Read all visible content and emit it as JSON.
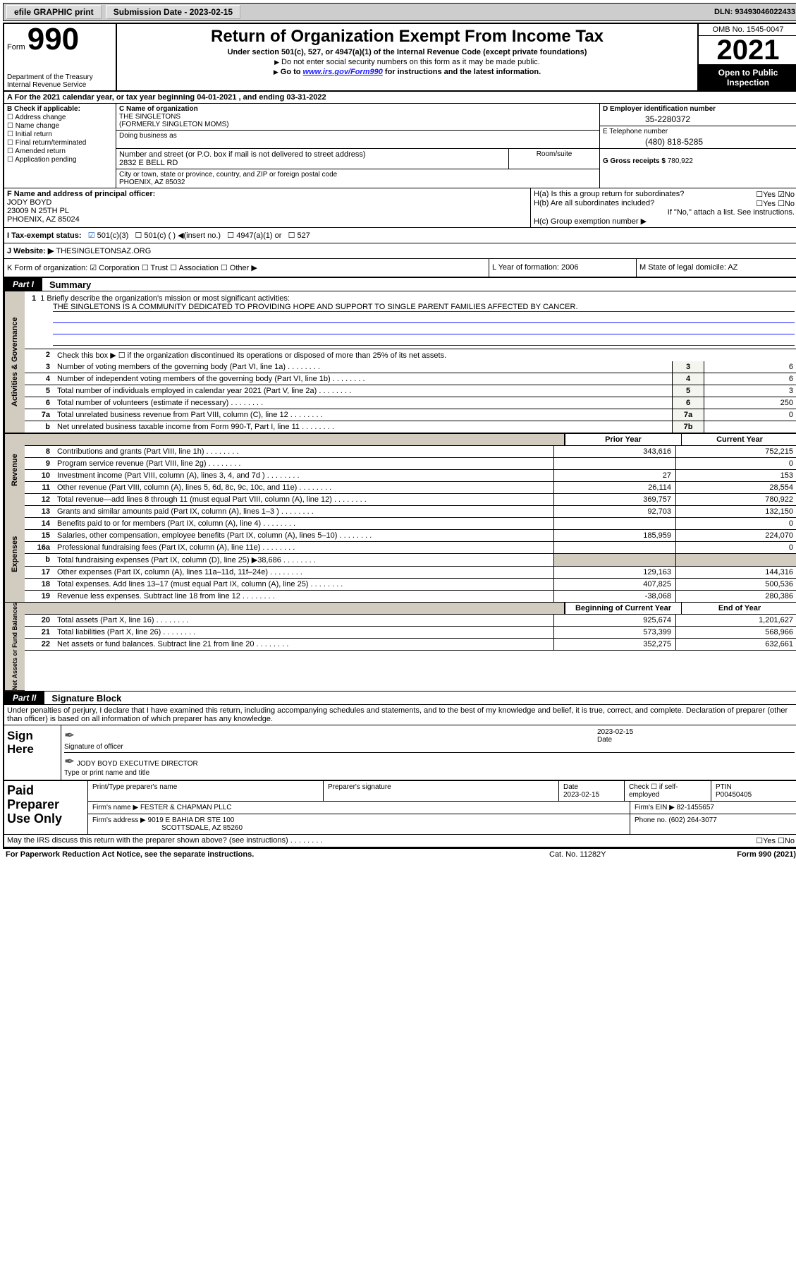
{
  "topbar": {
    "efile": "efile GRAPHIC print",
    "subdate_label": "Submission Date - ",
    "subdate": "2023-02-15",
    "dln": "DLN: 93493046022433"
  },
  "header": {
    "form_word": "Form",
    "form_num": "990",
    "title": "Return of Organization Exempt From Income Tax",
    "sub": "Under section 501(c), 527, or 4947(a)(1) of the Internal Revenue Code (except private foundations)",
    "line1": "Do not enter social security numbers on this form as it may be made public.",
    "line2a": "Go to ",
    "line2_link": "www.irs.gov/Form990",
    "line2b": " for instructions and the latest information.",
    "dept": "Department of the Treasury\nInternal Revenue Service",
    "omb": "OMB No. 1545-0047",
    "year": "2021",
    "open": "Open to Public Inspection"
  },
  "rowA": "A For the 2021 calendar year, or tax year beginning 04-01-2021   , and ending 03-31-2022",
  "colB": {
    "label": "B Check if applicable:",
    "items": [
      "Address change",
      "Name change",
      "Initial return",
      "Final return/terminated",
      "Amended return",
      "Application pending"
    ]
  },
  "colC": {
    "name_label": "C Name of organization",
    "name": "THE SINGLETONS",
    "formerly": "(FORMERLY SINGLETON MOMS)",
    "dba_label": "Doing business as",
    "addr_label": "Number and street (or P.O. box if mail is not delivered to street address)",
    "room_label": "Room/suite",
    "addr": "2832 E BELL RD",
    "city_label": "City or town, state or province, country, and ZIP or foreign postal code",
    "city": "PHOENIX, AZ  85032"
  },
  "colD": {
    "d_label": "D Employer identification number",
    "d_val": "35-2280372",
    "e_label": "E Telephone number",
    "e_val": "(480) 818-5285",
    "g_label": "G Gross receipts $ ",
    "g_val": "780,922"
  },
  "rowFH": {
    "f_label": "F Name and address of principal officer:",
    "f_name": "JODY BOYD",
    "f_addr1": "23009 N 25TH PL",
    "f_addr2": "PHOENIX, AZ  85024",
    "ha": "H(a)  Is this a group return for subordinates?",
    "ha_ans": "☐Yes ☑No",
    "hb": "H(b)  Are all subordinates included?",
    "hb_ans": "☐Yes ☐No",
    "hb_note": "If \"No,\" attach a list. See instructions.",
    "hc": "H(c)  Group exemption number ▶"
  },
  "rowI": {
    "label": "I   Tax-exempt status:",
    "c3": "501(c)(3)",
    "c": "501(c) (   ) ◀(insert no.)",
    "a1": "4947(a)(1) or",
    "s527": "527"
  },
  "rowJ": {
    "label": "J   Website: ▶ ",
    "val": "THESINGLETONSAZ.ORG"
  },
  "rowK": {
    "k": "K Form of organization:  ☑ Corporation  ☐ Trust  ☐ Association  ☐ Other ▶",
    "l": "L Year of formation: 2006",
    "m": "M State of legal domicile: AZ"
  },
  "part1": {
    "label": "Part I",
    "title": "Summary"
  },
  "governance": {
    "tab": "Activities & Governance",
    "brief_label": "1   Briefly describe the organization's mission or most significant activities:",
    "brief": "THE SINGLETONS IS A COMMUNITY DEDICATED TO PROVIDING HOPE AND SUPPORT TO SINGLE PARENT FAMILIES AFFECTED BY CANCER.",
    "l2": "Check this box ▶ ☐  if the organization discontinued its operations or disposed of more than 25% of its net assets.",
    "rows": [
      {
        "n": "3",
        "t": "Number of voting members of the governing body (Part VI, line 1a)",
        "b": "3",
        "v": "6"
      },
      {
        "n": "4",
        "t": "Number of independent voting members of the governing body (Part VI, line 1b)",
        "b": "4",
        "v": "6"
      },
      {
        "n": "5",
        "t": "Total number of individuals employed in calendar year 2021 (Part V, line 2a)",
        "b": "5",
        "v": "3"
      },
      {
        "n": "6",
        "t": "Total number of volunteers (estimate if necessary)",
        "b": "6",
        "v": "250"
      },
      {
        "n": "7a",
        "t": "Total unrelated business revenue from Part VIII, column (C), line 12",
        "b": "7a",
        "v": "0"
      },
      {
        "n": "b",
        "t": "Net unrelated business taxable income from Form 990-T, Part I, line 11",
        "b": "7b",
        "v": ""
      }
    ]
  },
  "twocol": {
    "c1": "Prior Year",
    "c2": "Current Year"
  },
  "revenue": {
    "tab": "Revenue",
    "rows": [
      {
        "n": "8",
        "t": "Contributions and grants (Part VIII, line 1h)",
        "c1": "343,616",
        "c2": "752,215"
      },
      {
        "n": "9",
        "t": "Program service revenue (Part VIII, line 2g)",
        "c1": "",
        "c2": "0"
      },
      {
        "n": "10",
        "t": "Investment income (Part VIII, column (A), lines 3, 4, and 7d )",
        "c1": "27",
        "c2": "153"
      },
      {
        "n": "11",
        "t": "Other revenue (Part VIII, column (A), lines 5, 6d, 8c, 9c, 10c, and 11e)",
        "c1": "26,114",
        "c2": "28,554"
      },
      {
        "n": "12",
        "t": "Total revenue—add lines 8 through 11 (must equal Part VIII, column (A), line 12)",
        "c1": "369,757",
        "c2": "780,922"
      }
    ]
  },
  "expenses": {
    "tab": "Expenses",
    "rows": [
      {
        "n": "13",
        "t": "Grants and similar amounts paid (Part IX, column (A), lines 1–3 )",
        "c1": "92,703",
        "c2": "132,150"
      },
      {
        "n": "14",
        "t": "Benefits paid to or for members (Part IX, column (A), line 4)",
        "c1": "",
        "c2": "0"
      },
      {
        "n": "15",
        "t": "Salaries, other compensation, employee benefits (Part IX, column (A), lines 5–10)",
        "c1": "185,959",
        "c2": "224,070"
      },
      {
        "n": "16a",
        "t": "Professional fundraising fees (Part IX, column (A), line 11e)",
        "c1": "",
        "c2": "0"
      },
      {
        "n": "b",
        "t": "Total fundraising expenses (Part IX, column (D), line 25) ▶38,686",
        "c1": "shade",
        "c2": "shade"
      },
      {
        "n": "17",
        "t": "Other expenses (Part IX, column (A), lines 11a–11d, 11f–24e)",
        "c1": "129,163",
        "c2": "144,316"
      },
      {
        "n": "18",
        "t": "Total expenses. Add lines 13–17 (must equal Part IX, column (A), line 25)",
        "c1": "407,825",
        "c2": "500,536"
      },
      {
        "n": "19",
        "t": "Revenue less expenses. Subtract line 18 from line 12",
        "c1": "-38,068",
        "c2": "280,386"
      }
    ]
  },
  "twocol2": {
    "c1": "Beginning of Current Year",
    "c2": "End of Year"
  },
  "netassets": {
    "tab": "Net Assets or Fund Balances",
    "rows": [
      {
        "n": "20",
        "t": "Total assets (Part X, line 16)",
        "c1": "925,674",
        "c2": "1,201,627"
      },
      {
        "n": "21",
        "t": "Total liabilities (Part X, line 26)",
        "c1": "573,399",
        "c2": "568,966"
      },
      {
        "n": "22",
        "t": "Net assets or fund balances. Subtract line 21 from line 20",
        "c1": "352,275",
        "c2": "632,661"
      }
    ]
  },
  "part2": {
    "label": "Part II",
    "title": "Signature Block"
  },
  "sig": {
    "declare": "Under penalties of perjury, I declare that I have examined this return, including accompanying schedules and statements, and to the best of my knowledge and belief, it is true, correct, and complete. Declaration of preparer (other than officer) is based on all information of which preparer has any knowledge.",
    "sign_here": "Sign Here",
    "sig_officer": "Signature of officer",
    "date_lbl": "Date",
    "date_val": "2023-02-15",
    "officer": "JODY BOYD  EXECUTIVE DIRECTOR",
    "type_name": "Type or print name and title"
  },
  "paid": {
    "label": "Paid Preparer Use Only",
    "h1": "Print/Type preparer's name",
    "h2": "Preparer's signature",
    "h3": "Date",
    "h3v": "2023-02-15",
    "h4": "Check ☐ if self-employed",
    "h5": "PTIN",
    "h5v": "P00450405",
    "firm_name_lbl": "Firm's name    ▶ ",
    "firm_name": "FESTER & CHAPMAN PLLC",
    "firm_ein_lbl": "Firm's EIN ▶ ",
    "firm_ein": "82-1455657",
    "firm_addr_lbl": "Firm's address ▶ ",
    "firm_addr1": "9019 E BAHIA DR STE 100",
    "firm_addr2": "SCOTTSDALE, AZ  85260",
    "phone_lbl": "Phone no. ",
    "phone": "(602) 264-3077"
  },
  "may": {
    "text": "May the IRS discuss this return with the preparer shown above? (see instructions)",
    "ans": "☐Yes   ☐No"
  },
  "footer": {
    "l": "For Paperwork Reduction Act Notice, see the separate instructions.",
    "m": "Cat. No. 11282Y",
    "r": "Form 990 (2021)"
  }
}
